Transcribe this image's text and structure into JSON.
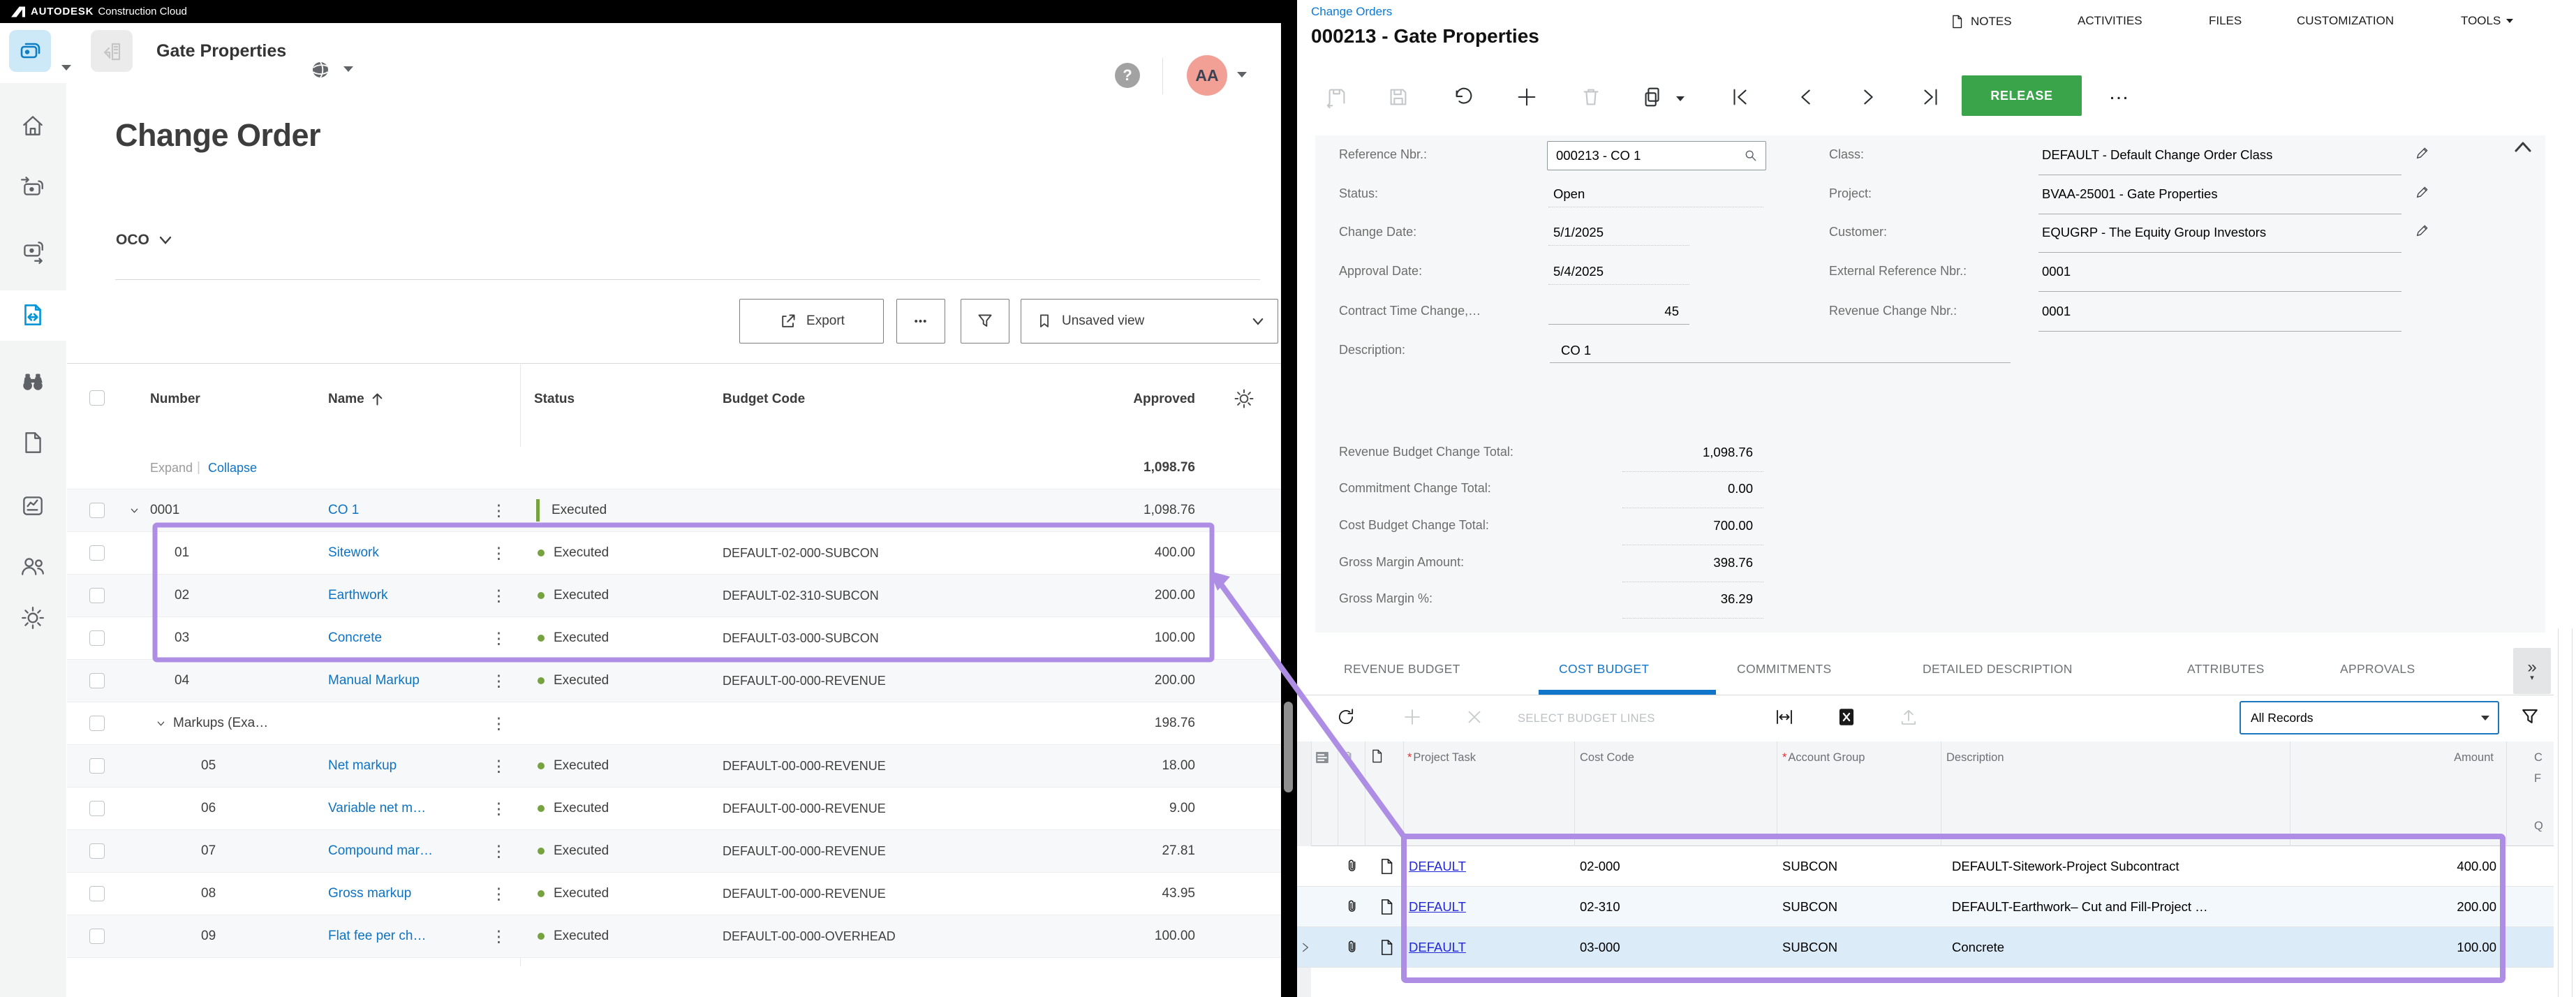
{
  "colors": {
    "release_green": "#3aa44a",
    "active_tab_blue": "#1175c9",
    "annotation_purple": "#ae8de4",
    "status_green": "#76a240",
    "rail_active_blue": "#0696d7"
  },
  "left_app": {
    "topbar": {
      "brand": "AUTODESK",
      "suffix": "Construction Cloud"
    },
    "header": {
      "project_name": "Gate Properties",
      "help_label": "?",
      "avatar_initials": "AA"
    },
    "sidebar": {
      "items": [
        {
          "icon": "home"
        },
        {
          "icon": "cost-in"
        },
        {
          "icon": "cost-out"
        },
        {
          "icon": "change-order",
          "active": true
        },
        {
          "icon": "binoculars"
        },
        {
          "icon": "file"
        },
        {
          "icon": "report"
        },
        {
          "icon": "members"
        },
        {
          "icon": "settings"
        }
      ]
    },
    "page_title": "Change Order",
    "type_dropdown": "OCO",
    "toolbar": {
      "export_label": "Export",
      "more_label": "•••",
      "view_label": "Unsaved view"
    },
    "table": {
      "headers": {
        "number": "Number",
        "name": "Name",
        "status": "Status",
        "budget_code": "Budget Code",
        "approved": "Approved"
      },
      "expand_label": "Expand",
      "collapse_label": "Collapse",
      "group_total": "1,098.76",
      "rows": [
        {
          "number": "0001",
          "name": "CO 1",
          "status": "Executed",
          "status_style": "bar",
          "budget_code": "",
          "approved": "1,098.76",
          "level": 0,
          "caret": true,
          "shade": true
        },
        {
          "number": "01",
          "name": "Sitework",
          "status": "Executed",
          "status_style": "dot",
          "budget_code": "DEFAULT-02-000-SUBCON",
          "approved": "400.00",
          "level": 1
        },
        {
          "number": "02",
          "name": "Earthwork",
          "status": "Executed",
          "status_style": "dot",
          "budget_code": "DEFAULT-02-310-SUBCON",
          "approved": "200.00",
          "level": 1,
          "shade": true
        },
        {
          "number": "03",
          "name": "Concrete",
          "status": "Executed",
          "status_style": "dot",
          "budget_code": "DEFAULT-03-000-SUBCON",
          "approved": "100.00",
          "level": 1
        },
        {
          "number": "04",
          "name": "Manual Markup",
          "status": "Executed",
          "status_style": "dot",
          "budget_code": "DEFAULT-00-000-REVENUE",
          "approved": "200.00",
          "level": 1,
          "shade": true
        },
        {
          "number": "Markups (Exa…",
          "name": "",
          "status": "",
          "budget_code": "",
          "approved": "198.76",
          "level": 0,
          "caret": true,
          "group": true
        },
        {
          "number": "05",
          "name": "Net markup",
          "status": "Executed",
          "status_style": "dot",
          "budget_code": "DEFAULT-00-000-REVENUE",
          "approved": "18.00",
          "level": 2,
          "shade": true
        },
        {
          "number": "06",
          "name": "Variable net m…",
          "status": "Executed",
          "status_style": "dot",
          "budget_code": "DEFAULT-00-000-REVENUE",
          "approved": "9.00",
          "level": 2
        },
        {
          "number": "07",
          "name": "Compound mar…",
          "status": "Executed",
          "status_style": "dot",
          "budget_code": "DEFAULT-00-000-REVENUE",
          "approved": "27.81",
          "level": 2,
          "shade": true
        },
        {
          "number": "08",
          "name": "Gross markup",
          "status": "Executed",
          "status_style": "dot",
          "budget_code": "DEFAULT-00-000-REVENUE",
          "approved": "43.95",
          "level": 2
        },
        {
          "number": "09",
          "name": "Flat fee per ch…",
          "status": "Executed",
          "status_style": "dot",
          "budget_code": "DEFAULT-00-000-OVERHEAD",
          "approved": "100.00",
          "level": 2,
          "shade": true
        }
      ]
    }
  },
  "right_app": {
    "breadcrumb": "Change Orders",
    "title": "000213 - Gate Properties",
    "menu": [
      "NOTES",
      "ACTIVITIES",
      "FILES",
      "CUSTOMIZATION",
      "TOOLS"
    ],
    "release_label": "RELEASE",
    "more_label": "…",
    "form": {
      "fields_left": [
        {
          "label": "Reference Nbr.:",
          "value": "000213 - CO 1",
          "lookup": true
        },
        {
          "label": "Status:",
          "value": "Open"
        },
        {
          "label": "Change Date:",
          "value": "5/1/2025"
        },
        {
          "label": "Approval Date:",
          "value": "5/4/2025"
        },
        {
          "label": "Contract Time Change,…",
          "value": "45"
        },
        {
          "label": "Description:",
          "value": "CO 1"
        }
      ],
      "fields_right": [
        {
          "label": "Class:",
          "value": "DEFAULT - Default Change Order Class",
          "editable": true
        },
        {
          "label": "Project:",
          "value": "BVAA-25001 - Gate Properties",
          "editable": true
        },
        {
          "label": "Customer:",
          "value": "EQUGRP - The Equity Group Investors",
          "editable": true
        },
        {
          "label": "External Reference Nbr.:",
          "value": "0001"
        },
        {
          "label": "Revenue Change Nbr.:",
          "value": "0001"
        }
      ]
    },
    "totals": [
      {
        "label": "Revenue Budget Change Total:",
        "value": "1,098.76"
      },
      {
        "label": "Commitment Change Total:",
        "value": "0.00"
      },
      {
        "label": "Cost Budget Change Total:",
        "value": "700.00"
      },
      {
        "label": "Gross Margin Amount:",
        "value": "398.76"
      },
      {
        "label": "Gross Margin %:",
        "value": "36.29"
      }
    ],
    "tabs": [
      {
        "label": "REVENUE BUDGET"
      },
      {
        "label": "COST BUDGET",
        "active": true
      },
      {
        "label": "COMMITMENTS"
      },
      {
        "label": "DETAILED DESCRIPTION"
      },
      {
        "label": "ATTRIBUTES"
      },
      {
        "label": "APPROVALS"
      }
    ],
    "grid_toolbar": {
      "select_label": "SELECT BUDGET LINES",
      "records_value": "All Records"
    },
    "grid": {
      "headers": [
        {
          "label": "Project Task",
          "required": true
        },
        {
          "label": "Cost Code"
        },
        {
          "label": "Account Group",
          "required": true
        },
        {
          "label": "Description"
        },
        {
          "label": "Amount"
        }
      ],
      "clipped_header_fragments": [
        "C",
        "F",
        "Q"
      ],
      "rows": [
        {
          "project_task": "DEFAULT",
          "cost_code": "02-000",
          "account_group": "SUBCON",
          "description": "DEFAULT-Sitework-Project Subcontract",
          "amount": "400.00"
        },
        {
          "project_task": "DEFAULT",
          "cost_code": "02-310",
          "account_group": "SUBCON",
          "description": "DEFAULT-Earthwork– Cut and Fill-Project …",
          "amount": "200.00"
        },
        {
          "project_task": "DEFAULT",
          "cost_code": "03-000",
          "account_group": "SUBCON",
          "description": "Concrete",
          "amount": "100.00",
          "selected": true
        }
      ]
    }
  }
}
